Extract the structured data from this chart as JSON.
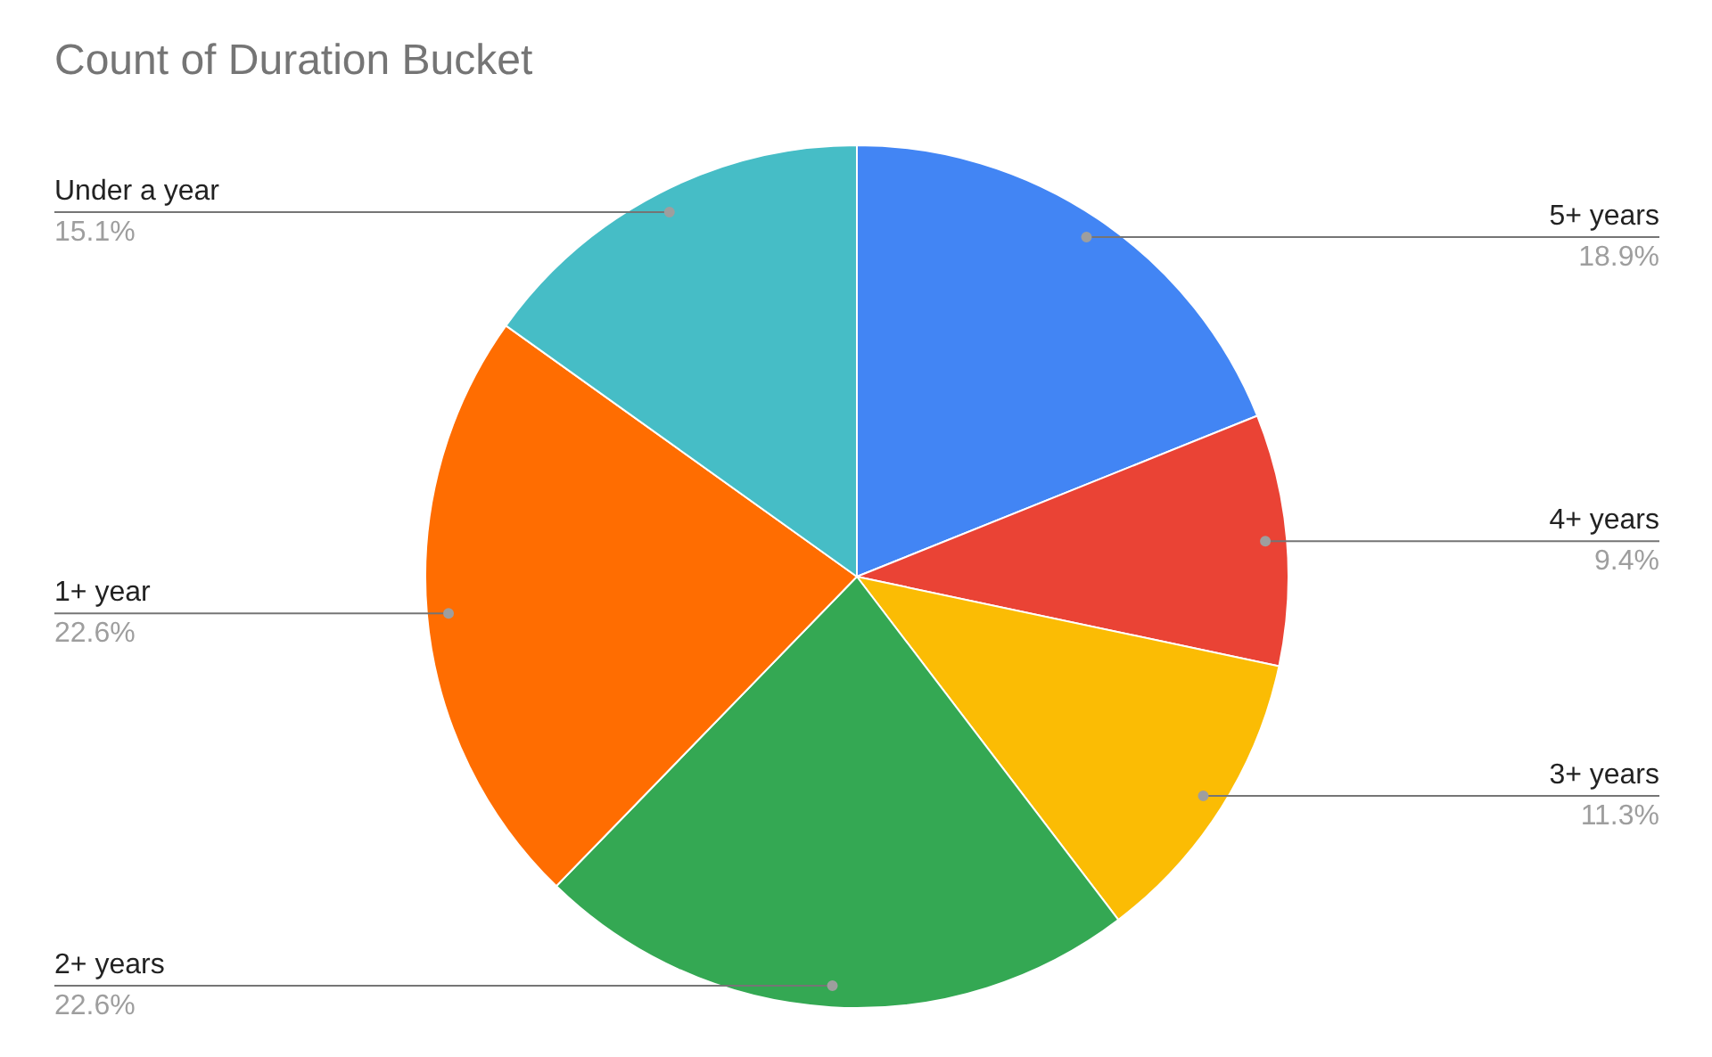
{
  "chart_data": {
    "type": "pie",
    "title": "Count of Duration Bucket",
    "categories": [
      "5+ years",
      "4+ years",
      "3+ years",
      "2+ years",
      "1+ year",
      "Under a year"
    ],
    "values": [
      18.9,
      9.4,
      11.3,
      22.6,
      22.6,
      15.1
    ],
    "colors": [
      "#4285f4",
      "#ea4335",
      "#fbbc04",
      "#34a853",
      "#ff6d01",
      "#46bdc6"
    ],
    "value_labels": [
      "18.9%",
      "9.4%",
      "11.3%",
      "22.6%",
      "22.6%",
      "15.1%"
    ],
    "legend": false
  }
}
